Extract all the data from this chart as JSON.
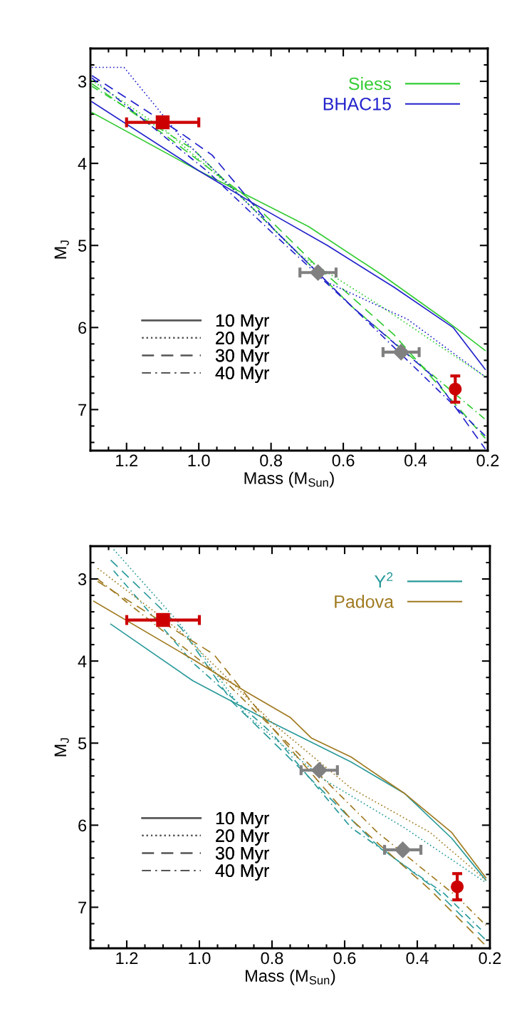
{
  "chart_data": [
    {
      "type": "line",
      "xlabel": "Mass (M$_{Sun}$)",
      "ylabel": "M$_{J}$",
      "xlim": [
        1.3,
        0.2
      ],
      "ylim": [
        7.5,
        2.6
      ],
      "xticks": [
        {
          "value": 1.2,
          "label": "1.2"
        },
        {
          "value": 1.0,
          "label": "1.0"
        },
        {
          "value": 0.8,
          "label": "0.8"
        },
        {
          "value": 0.6,
          "label": "0.6"
        },
        {
          "value": 0.4,
          "label": "0.4"
        },
        {
          "value": 0.2,
          "label": "0.2"
        }
      ],
      "yticks": [
        3,
        4,
        5,
        6,
        7
      ],
      "grid": false,
      "legend": "top right",
      "annotations": [
        "10 Myr",
        "20 Myr",
        "30 Myr",
        "40 Myr"
      ],
      "series": [
        {
          "name": "Siess",
          "color": "#33cc33",
          "line_style": "solid",
          "x": [
            1.296,
            1.0,
            0.696,
            0.496,
            0.311,
            0.207
          ],
          "values": [
            3.38,
            4.09,
            4.77,
            5.35,
            5.93,
            6.28
          ]
        },
        {
          "color": "#33cc33",
          "line_style": "dotted",
          "x": [
            1.296,
            1.089,
            0.896,
            0.719,
            0.496,
            0.207
          ],
          "values": [
            2.99,
            3.61,
            4.35,
            5.12,
            5.74,
            6.6
          ]
        },
        {
          "color": "#33cc33",
          "line_style": "dashed",
          "x": [
            1.296,
            1.089,
            0.867,
            0.681,
            0.459,
            0.207
          ],
          "values": [
            3.03,
            3.67,
            4.41,
            5.22,
            6.09,
            7.35
          ]
        },
        {
          "color": "#33cc33",
          "line_style": "dashdot",
          "x": [
            1.296,
            1.015,
            0.793,
            0.57,
            0.207
          ],
          "values": [
            3.06,
            3.83,
            4.8,
            5.77,
            7.12
          ]
        },
        {
          "name": "BHAC15",
          "color": "#2222cc",
          "line_style": "solid",
          "x": [
            1.296,
            1.0,
            0.852,
            0.644,
            0.459,
            0.296,
            0.207
          ],
          "values": [
            3.25,
            4.09,
            4.48,
            5.0,
            5.51,
            6.0,
            6.51
          ]
        },
        {
          "color": "#2222cc",
          "line_style": "dotted",
          "x": [
            1.296,
            1.207,
            1.052,
            0.837,
            0.644,
            0.422,
            0.207
          ],
          "values": [
            2.83,
            2.83,
            3.67,
            4.61,
            5.45,
            5.9,
            6.6
          ]
        },
        {
          "color": "#2222cc",
          "line_style": "dashed",
          "x": [
            1.296,
            1.05,
            0.963,
            0.793,
            0.57,
            0.348,
            0.207
          ],
          "values": [
            2.93,
            3.63,
            3.9,
            4.8,
            5.77,
            6.61,
            7.48
          ]
        },
        {
          "color": "#2222cc",
          "line_style": "dashdot",
          "x": [
            1.296,
            0.978,
            0.793,
            0.57,
            0.207
          ],
          "values": [
            2.96,
            4.09,
            4.86,
            5.77,
            7.32
          ]
        },
        {
          "color": "#cc0000",
          "type": "scatter",
          "marker": "square",
          "x": [
            1.1
          ],
          "values": [
            3.5
          ],
          "xerrors": [
            0.1
          ]
        },
        {
          "color": "#808080",
          "type": "scatter",
          "marker": "diamond",
          "x": [
            0.67,
            0.44
          ],
          "values": [
            5.33,
            6.3
          ],
          "xerrors": [
            0.05,
            0.05
          ]
        },
        {
          "color": "#cc0000",
          "type": "scatter",
          "marker": "circle",
          "x": [
            0.29
          ],
          "values": [
            6.75
          ],
          "errors": [
            0.16
          ]
        }
      ]
    },
    {
      "type": "line",
      "xlabel": "Mass (M$_{Sun}$)",
      "ylabel": "M$_{J}$",
      "xlim": [
        1.3,
        0.2
      ],
      "ylim": [
        7.5,
        2.6
      ],
      "xticks": [
        {
          "value": 1.2,
          "label": "1.2"
        },
        {
          "value": 1.0,
          "label": "1.0"
        },
        {
          "value": 0.8,
          "label": "0.8"
        },
        {
          "value": 0.6,
          "label": "0.6"
        },
        {
          "value": 0.4,
          "label": "0.4"
        },
        {
          "value": 0.2,
          "label": "0.2"
        }
      ],
      "yticks": [
        3,
        4,
        5,
        6,
        7
      ],
      "grid": false,
      "legend": "top right",
      "annotations": [
        "10 Myr",
        "20 Myr",
        "30 Myr",
        "40 Myr"
      ],
      "series": [
        {
          "name": "Y$^{2}$",
          "color": "#2a9a9a",
          "line_style": "solid",
          "x": [
            1.244,
            1.018,
            0.8,
            0.582,
            0.436,
            0.305,
            0.211
          ],
          "values": [
            3.55,
            4.24,
            4.75,
            5.23,
            5.61,
            6.16,
            6.67
          ]
        },
        {
          "color": "#2a9a9a",
          "line_style": "dotted",
          "x": [
            1.236,
            1.055,
            0.873,
            0.655,
            0.436,
            0.211
          ],
          "values": [
            2.64,
            3.54,
            4.65,
            5.45,
            6.03,
            6.7
          ]
        },
        {
          "color": "#2a9a9a",
          "line_style": "dashed",
          "x": [
            1.244,
            1.05,
            0.909,
            0.727,
            0.509,
            0.364,
            0.211
          ],
          "values": [
            2.77,
            3.6,
            4.5,
            5.29,
            6.25,
            6.73,
            7.4
          ]
        },
        {
          "color": "#2a9a9a",
          "line_style": "dashdot",
          "x": [
            1.236,
            1.018,
            0.8,
            0.582,
            0.327,
            0.225
          ],
          "values": [
            2.9,
            4.02,
            4.88,
            6.03,
            6.83,
            7.27
          ]
        },
        {
          "name": "Padova",
          "color": "#a07a20",
          "line_style": "solid",
          "x": [
            1.291,
            1.018,
            0.873,
            0.749,
            0.691,
            0.582,
            0.436,
            0.305,
            0.211
          ],
          "values": [
            3.27,
            3.98,
            4.37,
            4.69,
            4.94,
            5.17,
            5.61,
            6.09,
            6.64
          ]
        },
        {
          "color": "#a07a20",
          "line_style": "dotted",
          "x": [
            1.28,
            1.055,
            0.8,
            0.582,
            0.364,
            0.211
          ],
          "values": [
            2.87,
            3.63,
            4.75,
            5.55,
            6.09,
            6.67
          ]
        },
        {
          "color": "#a07a20",
          "line_style": "dashed",
          "x": [
            1.28,
            1.05,
            0.96,
            0.8,
            0.582,
            0.364,
            0.211
          ],
          "values": [
            3.03,
            3.67,
            3.92,
            4.81,
            5.93,
            6.79,
            7.47
          ]
        },
        {
          "color": "#a07a20",
          "line_style": "dashdot",
          "x": [
            1.28,
            0.945,
            0.727,
            0.509,
            0.291,
            0.211
          ],
          "values": [
            3.0,
            4.18,
            5.13,
            6.09,
            6.87,
            7.22
          ]
        },
        {
          "color": "#cc0000",
          "type": "scatter",
          "marker": "square",
          "x": [
            1.1
          ],
          "values": [
            3.5
          ],
          "xerrors": [
            0.1
          ]
        },
        {
          "color": "#808080",
          "type": "scatter",
          "marker": "diamond",
          "x": [
            0.67,
            0.44
          ],
          "values": [
            5.33,
            6.3
          ],
          "xerrors": [
            0.05,
            0.05
          ]
        },
        {
          "color": "#cc0000",
          "type": "scatter",
          "marker": "circle",
          "x": [
            0.29
          ],
          "values": [
            6.75
          ],
          "errors": [
            0.16
          ]
        }
      ]
    }
  ]
}
